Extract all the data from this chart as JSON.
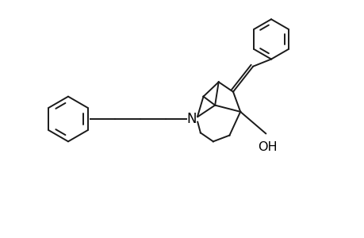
{
  "background": "#ffffff",
  "line_color": "#1a1a1a",
  "line_width": 1.4,
  "font_size": 11,
  "fig_width": 4.6,
  "fig_height": 3.0,
  "dpi": 100,
  "xlim": [
    -0.5,
    9.5
  ],
  "ylim": [
    0.0,
    6.2
  ]
}
